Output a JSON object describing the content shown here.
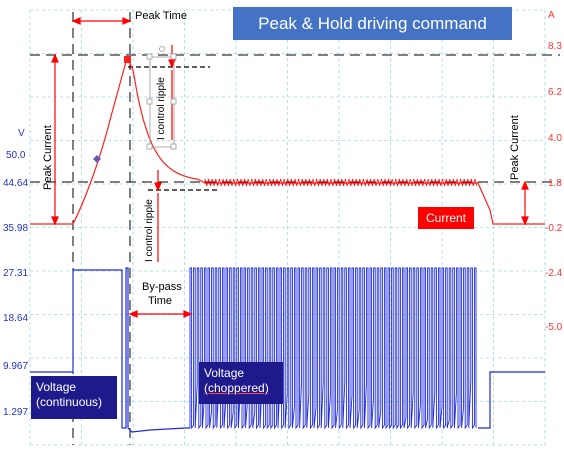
{
  "title": "Peak & Hold driving command",
  "left_axis": {
    "unit": "V",
    "ticks": [
      "50.0",
      "44.64",
      "35.98",
      "27.31",
      "18.64",
      "9.967",
      "1.297"
    ]
  },
  "right_axis": {
    "unit": "A",
    "ticks": [
      "8.3",
      "6.2",
      "4.0",
      "1.8",
      "-0.2",
      "-2.4",
      "-5.0"
    ]
  },
  "labels": {
    "peak_time": "Peak Time",
    "peak_current_left": "Peak Current",
    "peak_current_right": "Peak Current",
    "i_control_ripple_top": "I control ripple",
    "i_control_ripple_bottom": "I control ripple",
    "bypass_time_line1": "By-pass",
    "bypass_time_line2": "Time",
    "current": "Current",
    "voltage_continuous_line1": "Voltage",
    "voltage_continuous_line2": "(continuous)",
    "voltage_choppered_line1": "Voltage",
    "voltage_choppered_line2": "(choppered)"
  },
  "colors": {
    "current": "#ff0000",
    "voltage": "#1f2bd6",
    "title_bg": "#4472c4",
    "label_bg": "#1f1a8c",
    "grid": "#9fd6e8"
  }
}
